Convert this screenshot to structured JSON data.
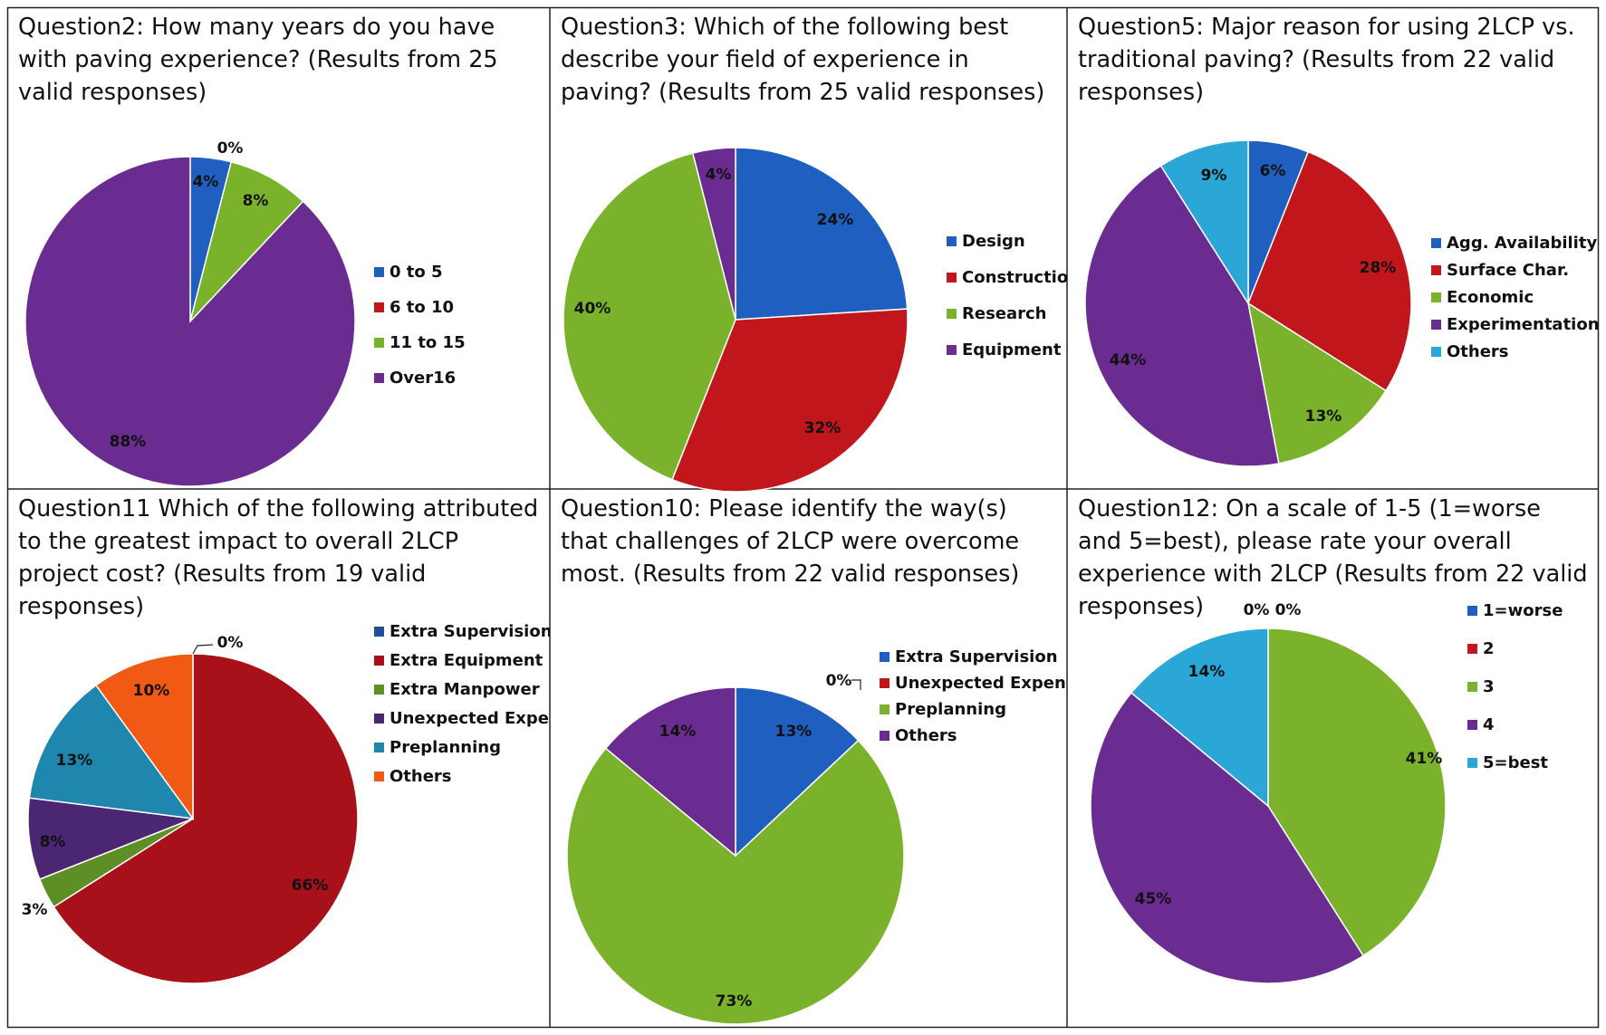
{
  "chart_data": [
    {
      "type": "pie",
      "title": "Question2: How many years do you have with paving experience? (Results from 25 valid responses)",
      "categories": [
        "0 to 5",
        "6 to 10",
        "11 to 15",
        "Over16"
      ],
      "values": [
        4,
        0,
        8,
        88
      ],
      "labels": [
        "4%",
        "0%",
        "8%",
        "88%"
      ],
      "colors": [
        "#1f5fbf",
        "#c0161c",
        "#7ab32b",
        "#6a2c91"
      ],
      "legend": "right"
    },
    {
      "type": "pie",
      "title": "Question3: Which of the following best describe your field of experience in paving? (Results from 25 valid responses)",
      "categories": [
        "Design",
        "Construction",
        "Research",
        "Equipment"
      ],
      "values": [
        24,
        32,
        40,
        4
      ],
      "labels": [
        "24%",
        "32%",
        "40%",
        "4%"
      ],
      "colors": [
        "#1f5fbf",
        "#c0161c",
        "#7ab32b",
        "#6a2c91"
      ],
      "legend": "right"
    },
    {
      "type": "pie",
      "title": "Question5: Major reason for using 2LCP vs. traditional paving? (Results from 22 valid responses)",
      "categories": [
        "Agg. Availability",
        "Surface Char.",
        "Economic",
        "Experimentation",
        "Others"
      ],
      "values": [
        6,
        28,
        13,
        44,
        9
      ],
      "labels": [
        "6%",
        "28%",
        "13%",
        "44%",
        "9%"
      ],
      "colors": [
        "#1f5fbf",
        "#c0161c",
        "#7ab32b",
        "#6a2c91",
        "#2aa7d6"
      ],
      "legend": "right"
    },
    {
      "type": "pie",
      "title": "Question11 Which of the following attributed to the greatest impact to overall 2LCP project cost? (Results from 19 valid responses)",
      "categories": [
        "Extra Supervision",
        "Extra Equipment",
        "Extra Manpower",
        "Unexpected Expendit",
        "Preplanning",
        "Others"
      ],
      "values": [
        0,
        66,
        3,
        8,
        13,
        10
      ],
      "labels": [
        "0%",
        "66%",
        "3%",
        "8%",
        "13%",
        "10%"
      ],
      "colors": [
        "#1e4f9a",
        "#a8101a",
        "#5e8e26",
        "#4b2672",
        "#1f86ad",
        "#f05a14"
      ],
      "legend": "right"
    },
    {
      "type": "pie",
      "title": "Question10: Please identify the way(s) that challenges of 2LCP were overcome most. (Results from 22 valid responses)",
      "categories": [
        "Extra Supervision",
        "Unexpected Expendit",
        "Preplanning",
        "Others"
      ],
      "values": [
        13,
        0,
        73,
        14
      ],
      "labels": [
        "13%",
        "0%",
        "73%",
        "14%"
      ],
      "colors": [
        "#1f5fbf",
        "#c0161c",
        "#7ab32b",
        "#6a2c91"
      ],
      "legend": "right"
    },
    {
      "type": "pie",
      "title": "Question12: On a scale of 1-5 (1=worse and 5=best), please rate your overall experience with 2LCP (Results from 22 valid responses)",
      "categories": [
        "1=worse",
        "2",
        "3",
        "4",
        "5=best"
      ],
      "values": [
        0,
        0,
        41,
        45,
        14
      ],
      "labels": [
        "0%",
        "0%",
        "41%",
        "45%",
        "14%"
      ],
      "colors": [
        "#1f5fbf",
        "#c0161c",
        "#7ab32b",
        "#6a2c91",
        "#2aa7d6"
      ],
      "legend": "right"
    }
  ]
}
